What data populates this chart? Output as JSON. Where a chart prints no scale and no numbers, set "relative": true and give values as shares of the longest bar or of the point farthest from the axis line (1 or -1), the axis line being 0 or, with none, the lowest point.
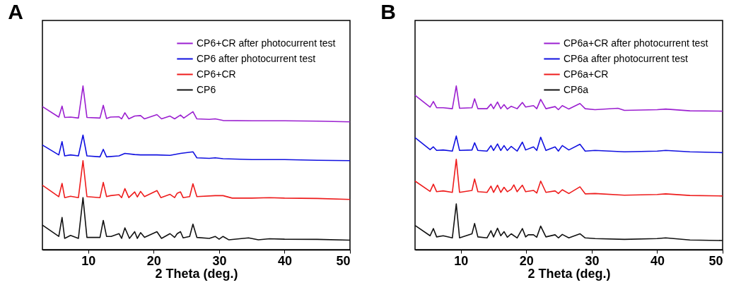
{
  "chart_data": [
    {
      "type": "line",
      "title": "A",
      "xlabel": "2 Theta (deg.)",
      "relative": true,
      "xlim": [
        3,
        50
      ],
      "xticks": [
        10,
        20,
        30,
        40,
        50
      ],
      "legend": "top right",
      "grid": false,
      "marker": "none",
      "line_style": "solid",
      "series": [
        {
          "name": "CP6+CR after photocurrent test",
          "color": "#9b1fd0",
          "x": [
            3,
            5.5,
            6,
            6.4,
            7.3,
            8.5,
            9.2,
            9.8,
            11.8,
            12.3,
            12.8,
            13.4,
            14.7,
            15.1,
            15.6,
            16.2,
            17.1,
            18,
            18.6,
            20.5,
            21.2,
            22.5,
            23.2,
            24.1,
            24.6,
            26,
            26.6,
            28.5,
            29.4,
            30.6,
            35,
            40,
            45,
            50
          ],
          "values": [
            0.874,
            0.81,
            0.877,
            0.808,
            0.81,
            0.804,
            1.0,
            0.808,
            0.804,
            0.882,
            0.801,
            0.81,
            0.812,
            0.799,
            0.836,
            0.799,
            0.816,
            0.819,
            0.799,
            0.825,
            0.799,
            0.816,
            0.799,
            0.822,
            0.804,
            0.843,
            0.799,
            0.796,
            0.799,
            0.789,
            0.787,
            0.787,
            0.785,
            0.781
          ]
        },
        {
          "name": "CP6 after photocurrent test",
          "color": "#1010e0",
          "x": [
            3,
            5.5,
            6,
            6.4,
            7.3,
            8.5,
            9.2,
            9.8,
            11.8,
            12.3,
            12.8,
            14.7,
            15.6,
            17.1,
            18,
            20.5,
            22.5,
            24.1,
            26,
            26.6,
            28.5,
            29.4,
            30.6,
            35,
            40,
            45,
            50
          ],
          "values": [
            0.639,
            0.579,
            0.66,
            0.573,
            0.579,
            0.573,
            0.7,
            0.573,
            0.567,
            0.613,
            0.567,
            0.573,
            0.588,
            0.581,
            0.579,
            0.579,
            0.576,
            0.588,
            0.598,
            0.561,
            0.558,
            0.561,
            0.556,
            0.55,
            0.55,
            0.546,
            0.544
          ]
        },
        {
          "name": "CP6+CR",
          "color": "#ee1c1c",
          "x": [
            3,
            5.5,
            6,
            6.4,
            7.3,
            8.5,
            9.2,
            9.8,
            11.8,
            12.3,
            12.8,
            13.4,
            14.7,
            15.1,
            15.6,
            16.2,
            17.1,
            17.5,
            18,
            18.6,
            20.5,
            21.1,
            22.5,
            23.2,
            23.6,
            24.1,
            24.5,
            25.5,
            26,
            26.6,
            29.4,
            30.6,
            32,
            35,
            37.7,
            40,
            45,
            50
          ],
          "values": [
            0.394,
            0.324,
            0.405,
            0.318,
            0.326,
            0.318,
            0.544,
            0.324,
            0.318,
            0.411,
            0.324,
            0.33,
            0.336,
            0.318,
            0.373,
            0.318,
            0.353,
            0.322,
            0.356,
            0.324,
            0.361,
            0.318,
            0.338,
            0.318,
            0.345,
            0.353,
            0.318,
            0.324,
            0.403,
            0.324,
            0.33,
            0.33,
            0.315,
            0.315,
            0.318,
            0.315,
            0.313,
            0.307
          ]
        },
        {
          "name": "CP6",
          "color": "#111111",
          "x": [
            3,
            5.5,
            6,
            6.4,
            7.3,
            8.5,
            9.2,
            9.8,
            11.8,
            12.3,
            12.8,
            13.5,
            14.7,
            15.1,
            15.6,
            16.3,
            17.1,
            17.5,
            18,
            18.6,
            20.5,
            21.2,
            22.5,
            23.2,
            23.6,
            24.1,
            24.5,
            25.5,
            26,
            26.6,
            28.5,
            29.4,
            30,
            30.6,
            31.5,
            34.5,
            36,
            37.7,
            40,
            45,
            50
          ],
          "values": [
            0.15,
            0.081,
            0.197,
            0.069,
            0.087,
            0.069,
            0.318,
            0.075,
            0.075,
            0.179,
            0.081,
            0.081,
            0.098,
            0.069,
            0.133,
            0.069,
            0.11,
            0.069,
            0.104,
            0.075,
            0.11,
            0.069,
            0.098,
            0.075,
            0.098,
            0.11,
            0.072,
            0.081,
            0.156,
            0.075,
            0.069,
            0.081,
            0.064,
            0.081,
            0.06,
            0.072,
            0.06,
            0.067,
            0.064,
            0.063,
            0.058
          ]
        }
      ]
    },
    {
      "type": "line",
      "title": "B",
      "xlabel": "2 Theta (deg.)",
      "relative": true,
      "xlim": [
        3,
        50
      ],
      "xticks": [
        10,
        20,
        30,
        40,
        50
      ],
      "legend": "top right",
      "grid": false,
      "marker": "none",
      "line_style": "solid",
      "series": [
        {
          "name": "CP6a+CR after photocurrent test",
          "color": "#9b1fd0",
          "x": [
            3,
            5.3,
            5.8,
            6.3,
            7.3,
            8.7,
            9.3,
            9.8,
            11.7,
            12.1,
            12.6,
            14,
            14.6,
            15,
            15.6,
            16.1,
            16.6,
            17.1,
            17.7,
            18.6,
            19.4,
            19.9,
            21.1,
            21.6,
            22.2,
            23,
            24.4,
            24.9,
            25.5,
            26.5,
            28.2,
            29,
            30.5,
            34,
            35,
            40,
            41.3,
            45,
            50
          ],
          "values": [
            0.943,
            0.871,
            0.905,
            0.867,
            0.867,
            0.861,
            1.0,
            0.864,
            0.867,
            0.922,
            0.861,
            0.861,
            0.889,
            0.861,
            0.902,
            0.861,
            0.886,
            0.859,
            0.876,
            0.861,
            0.899,
            0.871,
            0.88,
            0.861,
            0.918,
            0.861,
            0.874,
            0.855,
            0.88,
            0.859,
            0.893,
            0.861,
            0.855,
            0.864,
            0.851,
            0.855,
            0.859,
            0.848,
            0.846
          ]
        },
        {
          "name": "CP6a after photocurrent test",
          "color": "#1010e0",
          "x": [
            3,
            5.3,
            5.8,
            6.3,
            7.3,
            8.7,
            9.3,
            9.8,
            11.7,
            12.1,
            12.6,
            14,
            14.6,
            15,
            15.6,
            16.1,
            16.6,
            17.1,
            17.7,
            18.6,
            19.4,
            19.9,
            21.1,
            21.6,
            22.2,
            23,
            24.4,
            24.9,
            25.5,
            26.5,
            28.2,
            29,
            30.5,
            35,
            40,
            41.3,
            45,
            50
          ],
          "values": [
            0.684,
            0.611,
            0.628,
            0.606,
            0.609,
            0.602,
            0.694,
            0.606,
            0.609,
            0.653,
            0.606,
            0.602,
            0.636,
            0.606,
            0.646,
            0.606,
            0.636,
            0.606,
            0.631,
            0.602,
            0.657,
            0.609,
            0.628,
            0.606,
            0.687,
            0.606,
            0.628,
            0.602,
            0.636,
            0.609,
            0.644,
            0.602,
            0.606,
            0.598,
            0.602,
            0.606,
            0.598,
            0.593
          ]
        },
        {
          "name": "CP6a+CR",
          "color": "#ee1c1c",
          "x": [
            3,
            5.3,
            5.8,
            6.3,
            7.3,
            8.7,
            9.3,
            9.8,
            11.7,
            12.1,
            12.6,
            14,
            14.6,
            15,
            15.6,
            16.1,
            16.6,
            17.1,
            17.7,
            18.1,
            18.6,
            19.4,
            19.9,
            21.1,
            21.6,
            22.2,
            23,
            24.4,
            24.9,
            25.5,
            26.5,
            28.2,
            29,
            30.5,
            35,
            40,
            41.3,
            45,
            50
          ],
          "values": [
            0.419,
            0.356,
            0.4,
            0.354,
            0.359,
            0.35,
            0.552,
            0.35,
            0.362,
            0.432,
            0.354,
            0.35,
            0.388,
            0.35,
            0.394,
            0.35,
            0.381,
            0.354,
            0.369,
            0.396,
            0.354,
            0.394,
            0.354,
            0.362,
            0.346,
            0.419,
            0.35,
            0.359,
            0.343,
            0.366,
            0.343,
            0.384,
            0.341,
            0.343,
            0.333,
            0.337,
            0.341,
            0.331,
            0.328
          ]
        },
        {
          "name": "CP6a",
          "color": "#111111",
          "x": [
            3,
            5.3,
            5.8,
            6.3,
            7.3,
            8.7,
            9.3,
            9.8,
            11.7,
            12.1,
            12.6,
            14,
            14.6,
            15,
            15.6,
            16.1,
            16.6,
            17.1,
            17.7,
            18.6,
            19.4,
            19.9,
            20.3,
            21.1,
            21.6,
            22.2,
            23,
            24.4,
            24.9,
            25.5,
            26.5,
            28.2,
            29,
            30.5,
            35,
            40,
            41.3,
            45,
            50
          ],
          "values": [
            0.148,
            0.085,
            0.129,
            0.078,
            0.085,
            0.072,
            0.28,
            0.072,
            0.097,
            0.16,
            0.078,
            0.072,
            0.116,
            0.078,
            0.131,
            0.085,
            0.11,
            0.076,
            0.097,
            0.072,
            0.129,
            0.078,
            0.091,
            0.091,
            0.076,
            0.144,
            0.078,
            0.091,
            0.072,
            0.093,
            0.072,
            0.097,
            0.072,
            0.068,
            0.063,
            0.068,
            0.072,
            0.059,
            0.056
          ]
        }
      ]
    }
  ]
}
